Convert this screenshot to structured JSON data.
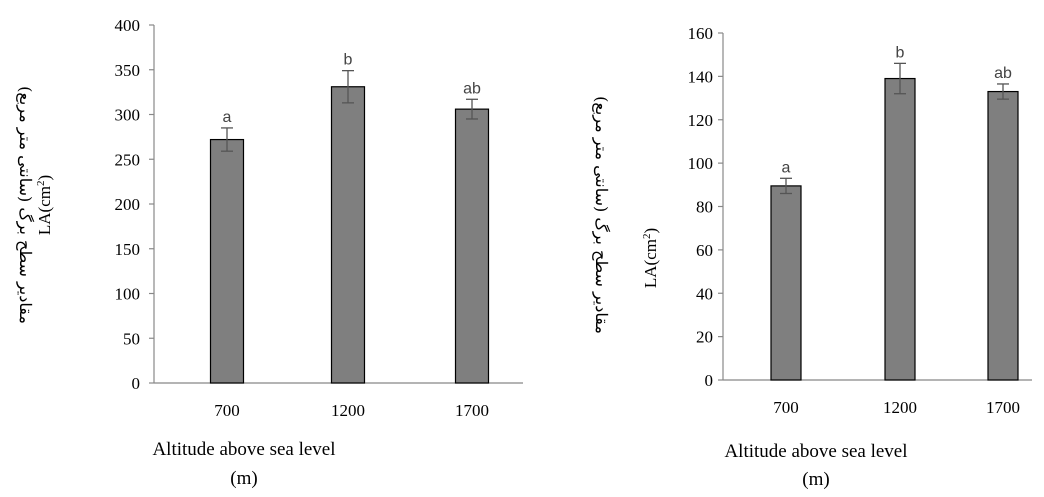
{
  "chart_data": [
    {
      "type": "bar",
      "categories": [
        "700",
        "1200",
        "1700"
      ],
      "values": [
        272,
        331,
        306
      ],
      "errors": [
        13,
        18,
        11
      ],
      "significance": [
        "a",
        "b",
        "ab"
      ],
      "ylim": [
        0,
        400
      ],
      "yticks": [
        0,
        50,
        100,
        150,
        200,
        250,
        300,
        350,
        400
      ],
      "xlabel_line1": "Altitude above sea level",
      "xlabel_line2": "(m)",
      "ylabel_fa": "مقادیر سطح برگ (سانتی متر مربع)",
      "ylabel_en": "LA(cm",
      "ylabel_en_sup": "2",
      "ylabel_en_close": ")"
    },
    {
      "type": "bar",
      "categories": [
        "700",
        "1200",
        "1700"
      ],
      "values": [
        89.5,
        139,
        133
      ],
      "errors": [
        3.5,
        7,
        3.5
      ],
      "significance": [
        "a",
        "b",
        "ab"
      ],
      "ylim": [
        0,
        160
      ],
      "yticks": [
        0,
        20,
        40,
        60,
        80,
        100,
        120,
        140,
        160
      ],
      "xlabel_line1": "Altitude above sea level",
      "xlabel_line2": "(m)",
      "ylabel_fa": "مقادیر سطح برگ (سانتی متر مربع)",
      "ylabel_en": "LA(cm",
      "ylabel_en_sup": "2",
      "ylabel_en_close": ")"
    }
  ]
}
